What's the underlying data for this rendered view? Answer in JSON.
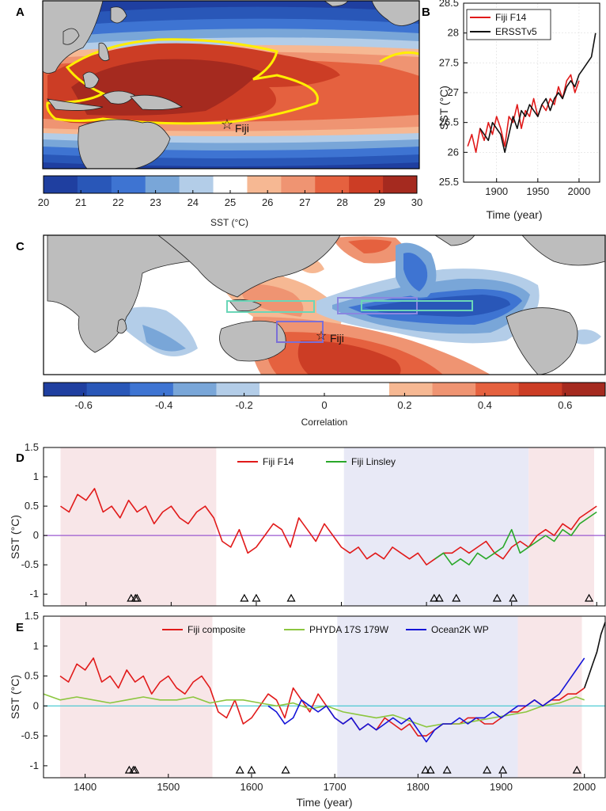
{
  "panel_labels": [
    "A",
    "B",
    "C",
    "D",
    "E"
  ],
  "colors": {
    "fiji_red": "#e11a1a",
    "ersst_black": "#111111",
    "linsley_green": "#2aa82a",
    "phyda_green": "#8cc63f",
    "ocean2k_blue": "#1414d8",
    "land_gray": "#bdbdbd",
    "zero_purple": "#9b59d0",
    "zero_cyan": "#3cc6cf",
    "pink_shade": "#f8e6e8",
    "blue_shade": "#e8e9f6",
    "contour_yellow": "#ffee00"
  },
  "map_a": {
    "site_label": "Fiji"
  },
  "map_c": {
    "site_label": "Fiji"
  },
  "chart_data": [
    {
      "panel": "A",
      "type": "heatmap",
      "colorbar": {
        "label": "SST (°C)",
        "ticks": [
          20,
          21,
          22,
          23,
          24,
          25,
          26,
          27,
          28,
          29,
          30
        ],
        "colors": [
          "#1f3fa0",
          "#2957b8",
          "#3e74d2",
          "#79a6d8",
          "#b3cde8",
          "#ffffff",
          "#f6b893",
          "#ef9472",
          "#e5613f",
          "#cc3d25",
          "#a52a1f"
        ]
      },
      "annotation": "Fiji"
    },
    {
      "panel": "B",
      "type": "line",
      "xlabel": "Time (year)",
      "ylabel": "SST (°C)",
      "xlim": [
        1860,
        2025
      ],
      "ylim": [
        25.5,
        28.5
      ],
      "xticks": [
        1900,
        1950,
        2000
      ],
      "yticks": [
        25.5,
        26,
        26.5,
        27,
        27.5,
        28,
        28.5
      ],
      "legend_position": "top-left",
      "series": [
        {
          "name": "Fiji F14",
          "x": [
            1865,
            1870,
            1875,
            1880,
            1885,
            1890,
            1895,
            1900,
            1905,
            1910,
            1915,
            1920,
            1925,
            1930,
            1935,
            1940,
            1945,
            1950,
            1955,
            1960,
            1965,
            1970,
            1975,
            1980,
            1985,
            1990,
            1995,
            2000
          ],
          "y": [
            26.1,
            26.3,
            26.0,
            26.4,
            26.2,
            26.5,
            26.3,
            26.6,
            26.4,
            26.1,
            26.6,
            26.5,
            26.8,
            26.4,
            26.7,
            26.6,
            26.9,
            26.6,
            26.8,
            26.7,
            26.9,
            26.8,
            27.1,
            26.9,
            27.2,
            27.3,
            27.0,
            27.2
          ]
        },
        {
          "name": "ERSSTv5",
          "x": [
            1880,
            1885,
            1890,
            1895,
            1900,
            1905,
            1910,
            1915,
            1920,
            1925,
            1930,
            1935,
            1940,
            1945,
            1950,
            1955,
            1960,
            1965,
            1970,
            1975,
            1980,
            1985,
            1990,
            1995,
            2000,
            2005,
            2010,
            2015,
            2020
          ],
          "y": [
            26.4,
            26.3,
            26.2,
            26.5,
            26.4,
            26.3,
            26.0,
            26.3,
            26.6,
            26.4,
            26.7,
            26.6,
            26.8,
            26.7,
            26.6,
            26.8,
            26.9,
            26.7,
            26.9,
            27.0,
            26.9,
            27.1,
            27.2,
            27.1,
            27.3,
            27.4,
            27.5,
            27.6,
            28.0
          ]
        }
      ]
    },
    {
      "panel": "C",
      "type": "heatmap",
      "colorbar": {
        "label": "Correlation",
        "ticks": [
          -0.6,
          -0.4,
          -0.2,
          0,
          0.2,
          0.4,
          0.6
        ],
        "colors": [
          "#1f3fa0",
          "#2957b8",
          "#3e74d2",
          "#79a6d8",
          "#b3cde8",
          "#ffffff",
          "#ffffff",
          "#ffffff",
          "#f6b893",
          "#ef9472",
          "#e5613f",
          "#cc3d25",
          "#a52a1f"
        ]
      },
      "annotation": "Fiji"
    },
    {
      "panel": "D",
      "type": "line",
      "ylabel": "SST (°C)",
      "xlim": [
        1350,
        2010
      ],
      "ylim": [
        -1.2,
        1.5
      ],
      "xticks": [
        1400,
        1500,
        1600,
        1700,
        1800,
        1900,
        2000
      ],
      "yticks": [
        -1,
        -0.5,
        0,
        0.5,
        1,
        1.5
      ],
      "legend_position": "top-center",
      "shaded_periods": [
        {
          "start": 1370,
          "end": 1553,
          "color": "pink"
        },
        {
          "start": 1703,
          "end": 1920,
          "color": "blue"
        },
        {
          "start": 1920,
          "end": 1997,
          "color": "pink"
        }
      ],
      "event_markers_years": [
        1453,
        1458,
        1460,
        1586,
        1600,
        1641,
        1809,
        1815,
        1835,
        1883,
        1902,
        1991
      ],
      "series": [
        {
          "name": "Fiji F14",
          "x": [
            1370,
            1380,
            1390,
            1400,
            1410,
            1420,
            1430,
            1440,
            1450,
            1460,
            1470,
            1480,
            1490,
            1500,
            1510,
            1520,
            1530,
            1540,
            1550,
            1560,
            1570,
            1580,
            1590,
            1600,
            1610,
            1620,
            1630,
            1640,
            1650,
            1660,
            1670,
            1680,
            1690,
            1700,
            1710,
            1720,
            1730,
            1740,
            1750,
            1760,
            1770,
            1780,
            1790,
            1800,
            1810,
            1820,
            1830,
            1840,
            1850,
            1860,
            1870,
            1880,
            1890,
            1900,
            1910,
            1920,
            1930,
            1940,
            1950,
            1960,
            1970,
            1980,
            1990,
            2000
          ],
          "y": [
            0.5,
            0.4,
            0.7,
            0.6,
            0.8,
            0.4,
            0.5,
            0.3,
            0.6,
            0.4,
            0.5,
            0.2,
            0.4,
            0.5,
            0.3,
            0.2,
            0.4,
            0.5,
            0.3,
            -0.1,
            -0.2,
            0.1,
            -0.3,
            -0.2,
            0.0,
            0.2,
            0.1,
            -0.2,
            0.3,
            0.1,
            -0.1,
            0.2,
            0.0,
            -0.2,
            -0.3,
            -0.2,
            -0.4,
            -0.3,
            -0.4,
            -0.2,
            -0.3,
            -0.4,
            -0.3,
            -0.5,
            -0.4,
            -0.3,
            -0.3,
            -0.2,
            -0.3,
            -0.2,
            -0.1,
            -0.3,
            -0.4,
            -0.2,
            -0.1,
            -0.2,
            0.0,
            0.1,
            0.0,
            0.2,
            0.1,
            0.3,
            0.4,
            0.5
          ]
        },
        {
          "name": "Fiji Linsley",
          "x": [
            1810,
            1820,
            1830,
            1840,
            1850,
            1860,
            1870,
            1880,
            1890,
            1900,
            1910,
            1920,
            1930,
            1940,
            1950,
            1960,
            1970,
            1980,
            1990,
            2000
          ],
          "y": [
            -0.4,
            -0.3,
            -0.5,
            -0.4,
            -0.5,
            -0.3,
            -0.4,
            -0.3,
            -0.2,
            0.1,
            -0.3,
            -0.2,
            -0.1,
            0.0,
            -0.1,
            0.1,
            0.0,
            0.2,
            0.3,
            0.4
          ]
        }
      ]
    },
    {
      "panel": "E",
      "type": "line",
      "xlabel": "Time (year)",
      "ylabel": "SST (°C)",
      "xlim": [
        1350,
        2025
      ],
      "ylim": [
        -1.2,
        1.5
      ],
      "xticks": [
        1400,
        1500,
        1600,
        1700,
        1800,
        1900,
        2000
      ],
      "yticks": [
        -1,
        -0.5,
        0,
        0.5,
        1,
        1.5
      ],
      "legend_position": "top-center",
      "shaded_periods": [
        {
          "start": 1370,
          "end": 1553,
          "color": "pink"
        },
        {
          "start": 1703,
          "end": 1920,
          "color": "blue"
        },
        {
          "start": 1920,
          "end": 1997,
          "color": "pink"
        }
      ],
      "event_markers_years": [
        1453,
        1458,
        1460,
        1586,
        1600,
        1641,
        1809,
        1815,
        1835,
        1883,
        1902,
        1991
      ],
      "series": [
        {
          "name": "Fiji composite",
          "x": [
            1370,
            1380,
            1390,
            1400,
            1410,
            1420,
            1430,
            1440,
            1450,
            1460,
            1470,
            1480,
            1490,
            1500,
            1510,
            1520,
            1530,
            1540,
            1550,
            1560,
            1570,
            1580,
            1590,
            1600,
            1610,
            1620,
            1630,
            1640,
            1650,
            1660,
            1670,
            1680,
            1690,
            1700,
            1710,
            1720,
            1730,
            1740,
            1750,
            1760,
            1770,
            1780,
            1790,
            1800,
            1810,
            1820,
            1830,
            1840,
            1850,
            1860,
            1870,
            1880,
            1890,
            1900,
            1910,
            1920,
            1930,
            1940,
            1950,
            1960,
            1970,
            1980,
            1990,
            2000
          ],
          "y": [
            0.5,
            0.4,
            0.7,
            0.6,
            0.8,
            0.4,
            0.5,
            0.3,
            0.6,
            0.4,
            0.5,
            0.2,
            0.4,
            0.5,
            0.3,
            0.2,
            0.4,
            0.5,
            0.3,
            -0.1,
            -0.2,
            0.1,
            -0.3,
            -0.2,
            0.0,
            0.2,
            0.1,
            -0.2,
            0.3,
            0.1,
            -0.1,
            0.2,
            0.0,
            -0.2,
            -0.3,
            -0.2,
            -0.4,
            -0.3,
            -0.4,
            -0.2,
            -0.3,
            -0.4,
            -0.3,
            -0.5,
            -0.5,
            -0.4,
            -0.3,
            -0.3,
            -0.3,
            -0.2,
            -0.2,
            -0.3,
            -0.3,
            -0.2,
            -0.1,
            -0.1,
            0.0,
            0.1,
            0.0,
            0.1,
            0.1,
            0.2,
            0.2,
            0.3
          ]
        },
        {
          "name": "PHYDA 17S 179W",
          "x": [
            1350,
            1370,
            1390,
            1410,
            1430,
            1450,
            1470,
            1490,
            1510,
            1530,
            1550,
            1570,
            1590,
            1610,
            1630,
            1650,
            1670,
            1690,
            1710,
            1730,
            1750,
            1770,
            1790,
            1810,
            1830,
            1850,
            1870,
            1890,
            1910,
            1930,
            1950,
            1970,
            1990,
            2000
          ],
          "y": [
            0.2,
            0.1,
            0.15,
            0.1,
            0.05,
            0.1,
            0.15,
            0.1,
            0.1,
            0.15,
            0.05,
            0.1,
            0.1,
            0.05,
            0.0,
            0.05,
            -0.05,
            0.0,
            -0.1,
            -0.15,
            -0.2,
            -0.15,
            -0.25,
            -0.35,
            -0.3,
            -0.3,
            -0.25,
            -0.2,
            -0.15,
            -0.1,
            0.0,
            0.05,
            0.15,
            0.1
          ]
        },
        {
          "name": "Ocean2K  WP",
          "x": [
            1620,
            1630,
            1640,
            1650,
            1660,
            1670,
            1680,
            1690,
            1700,
            1710,
            1720,
            1730,
            1740,
            1750,
            1760,
            1770,
            1780,
            1790,
            1800,
            1810,
            1820,
            1830,
            1840,
            1850,
            1860,
            1870,
            1880,
            1890,
            1900,
            1910,
            1920,
            1930,
            1940,
            1950,
            1960,
            1970,
            1980,
            1990,
            2000
          ],
          "y": [
            0.0,
            -0.1,
            -0.3,
            -0.2,
            0.1,
            0.0,
            -0.1,
            0.0,
            -0.2,
            -0.3,
            -0.2,
            -0.4,
            -0.3,
            -0.4,
            -0.3,
            -0.2,
            -0.3,
            -0.2,
            -0.4,
            -0.6,
            -0.4,
            -0.3,
            -0.3,
            -0.2,
            -0.3,
            -0.2,
            -0.2,
            -0.1,
            -0.2,
            -0.1,
            0.0,
            0.0,
            0.1,
            0.0,
            0.1,
            0.2,
            0.4,
            0.6,
            0.8
          ]
        },
        {
          "name": "",
          "x": [
            2000,
            2005,
            2010,
            2015,
            2020,
            2025
          ],
          "y": [
            0.3,
            0.5,
            0.7,
            0.9,
            1.2,
            1.4
          ]
        }
      ]
    }
  ]
}
